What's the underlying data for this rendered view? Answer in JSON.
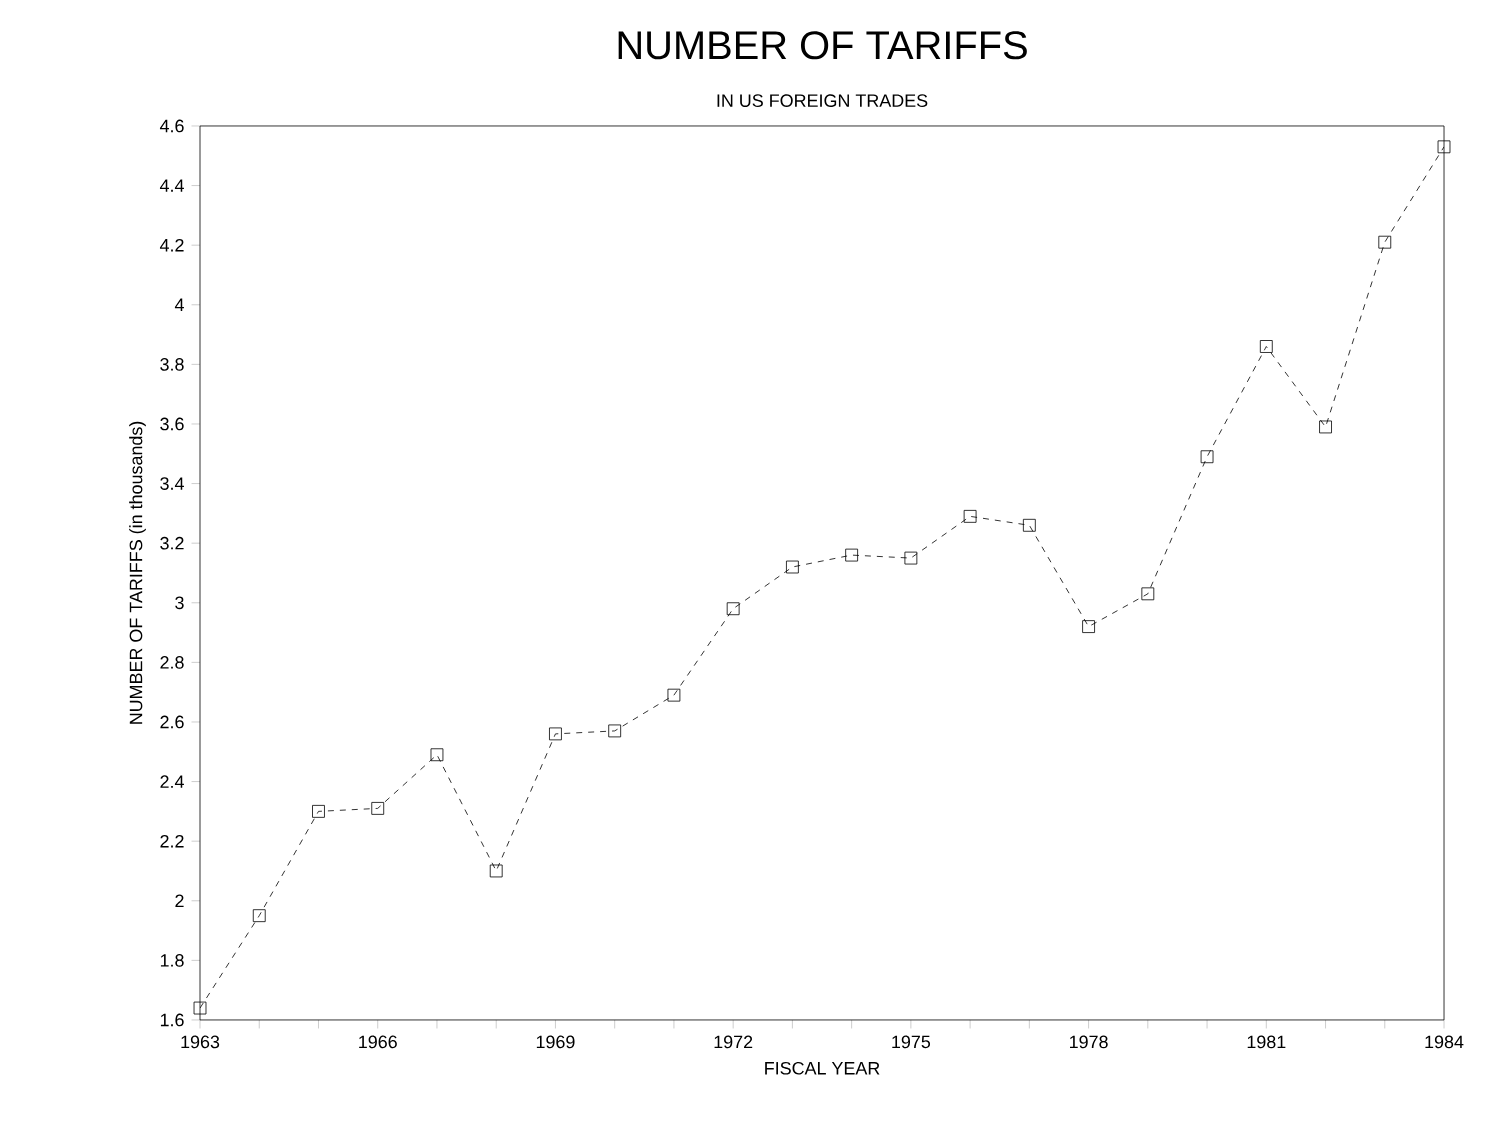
{
  "chart_data": {
    "type": "line",
    "title": "NUMBER OF TARIFFS",
    "subtitle": "IN US FOREIGN TRADES",
    "xlabel": "FISCAL YEAR",
    "ylabel": "NUMBER OF TARIFFS (in thousands)",
    "x": [
      1963,
      1964,
      1965,
      1966,
      1967,
      1968,
      1969,
      1970,
      1971,
      1972,
      1973,
      1974,
      1975,
      1976,
      1977,
      1978,
      1979,
      1980,
      1981,
      1982,
      1983,
      1984
    ],
    "series": [
      {
        "color": "#000000",
        "values": [
          1.64,
          1.95,
          2.3,
          2.31,
          2.49,
          2.1,
          2.56,
          2.57,
          2.69,
          2.98,
          3.12,
          3.16,
          3.15,
          3.29,
          3.26,
          2.92,
          3.03,
          3.49,
          3.86,
          3.59,
          4.21,
          4.53
        ]
      }
    ],
    "xlim": [
      1963,
      1984
    ],
    "xticks": [
      1963,
      {
        "value": 1964,
        "label": null
      },
      {
        "value": 1965,
        "label": null
      },
      1966,
      {
        "value": 1967,
        "label": null
      },
      {
        "value": 1968,
        "label": null
      },
      1969,
      {
        "value": 1970,
        "label": null
      },
      {
        "value": 1971,
        "label": null
      },
      1972,
      {
        "value": 1973,
        "label": null
      },
      {
        "value": 1974,
        "label": null
      },
      1975,
      {
        "value": 1976,
        "label": null
      },
      {
        "value": 1977,
        "label": null
      },
      1978,
      {
        "value": 1979,
        "label": null
      },
      {
        "value": 1980,
        "label": null
      },
      1981,
      {
        "value": 1982,
        "label": null
      },
      {
        "value": 1983,
        "label": null
      },
      1984
    ],
    "ylim": [
      1.6,
      4.6
    ],
    "yticks": [
      1.6,
      1.8,
      2,
      2.2,
      2.4,
      2.6,
      2.8,
      3,
      3.2,
      3.4,
      3.6,
      3.8,
      4,
      4.2,
      4.4,
      4.6
    ],
    "marker": "square",
    "line_style": "dashed"
  }
}
